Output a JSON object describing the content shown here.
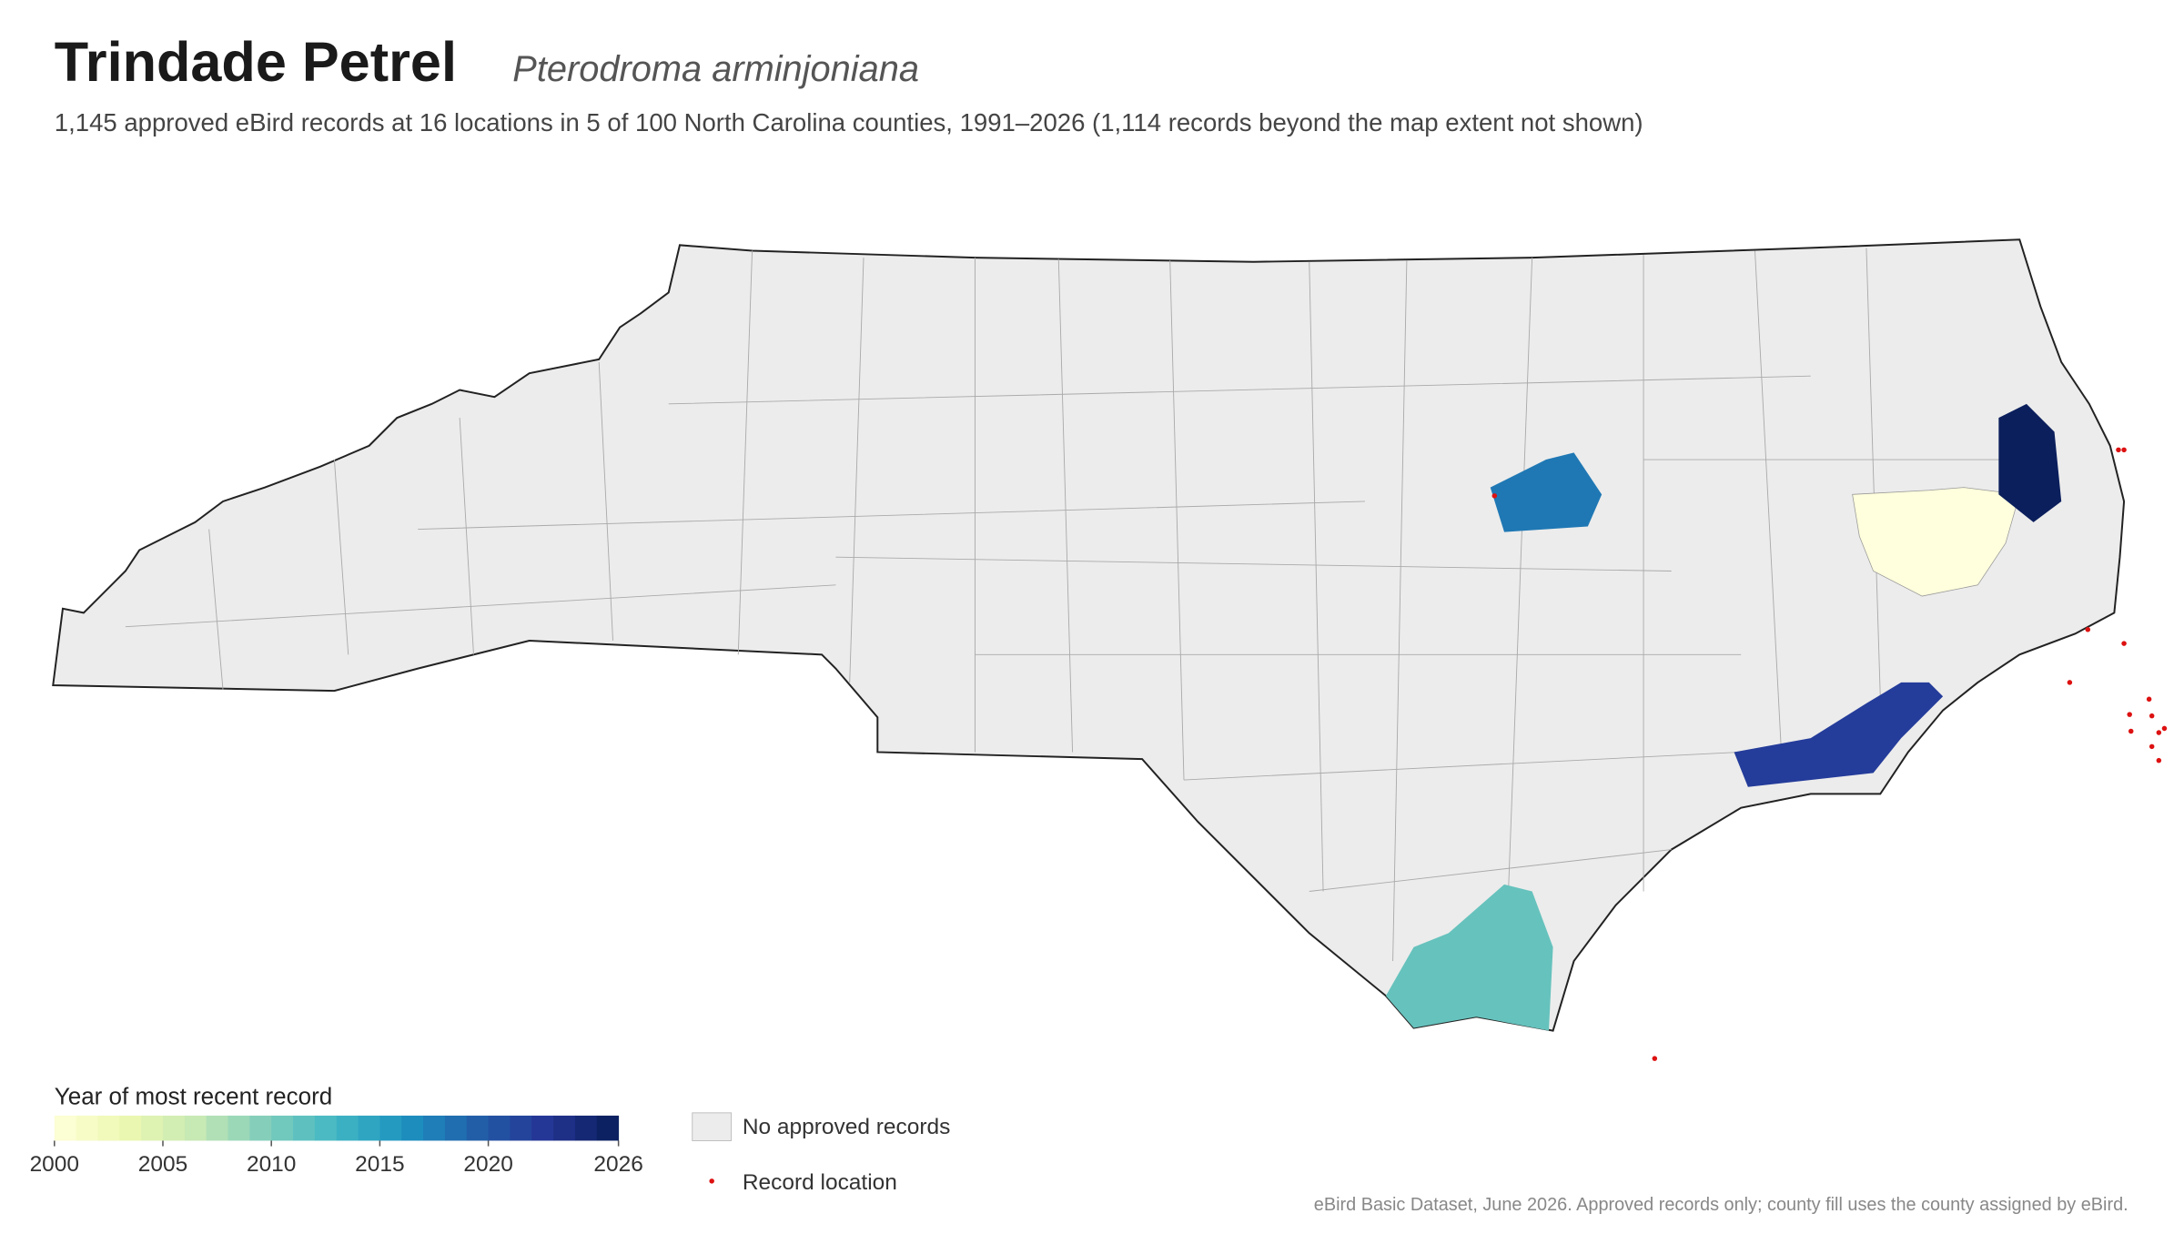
{
  "header": {
    "title": "Trindade Petrel",
    "scientific_name": "Pterodroma arminjoniana",
    "subtitle": "1,145 approved eBird records at 16 locations in 5 of 100 North Carolina counties, 1991–2026 (1,114 records beyond the map extent not shown)"
  },
  "colorbar": {
    "title": "Year of most recent record",
    "range": [
      2000,
      2026
    ],
    "ticks": [
      2000,
      2005,
      2010,
      2015,
      2020,
      2026
    ],
    "colors": [
      "#ffffd9",
      "#edf8b1",
      "#c7e9b4",
      "#7fcdbb",
      "#41b6c4",
      "#1d91c0",
      "#225ea8",
      "#253494",
      "#081d58"
    ]
  },
  "legend": {
    "no_records": "No approved records",
    "record_location": "Record location"
  },
  "footnote": "eBird Basic Dataset, June 2026. Approved records only; county fill uses the county assigned by eBird."
}
